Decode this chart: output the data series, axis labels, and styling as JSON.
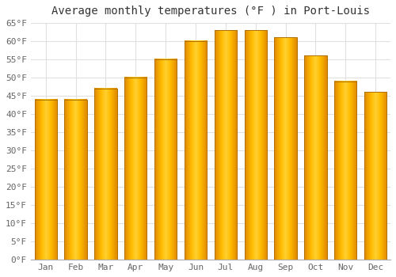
{
  "title": "Average monthly temperatures (°F ) in Port-Louis",
  "months": [
    "Jan",
    "Feb",
    "Mar",
    "Apr",
    "May",
    "Jun",
    "Jul",
    "Aug",
    "Sep",
    "Oct",
    "Nov",
    "Dec"
  ],
  "values": [
    44,
    44,
    47,
    50,
    55,
    60,
    63,
    63,
    61,
    56,
    49,
    46
  ],
  "bar_color_center": "#FFCC33",
  "bar_color_edge": "#E08800",
  "ylim": [
    0,
    65
  ],
  "ytick_step": 5,
  "background_color": "#FFFFFF",
  "title_fontsize": 10,
  "tick_fontsize": 8,
  "grid_color": "#E0E0E0",
  "bar_width": 0.75
}
